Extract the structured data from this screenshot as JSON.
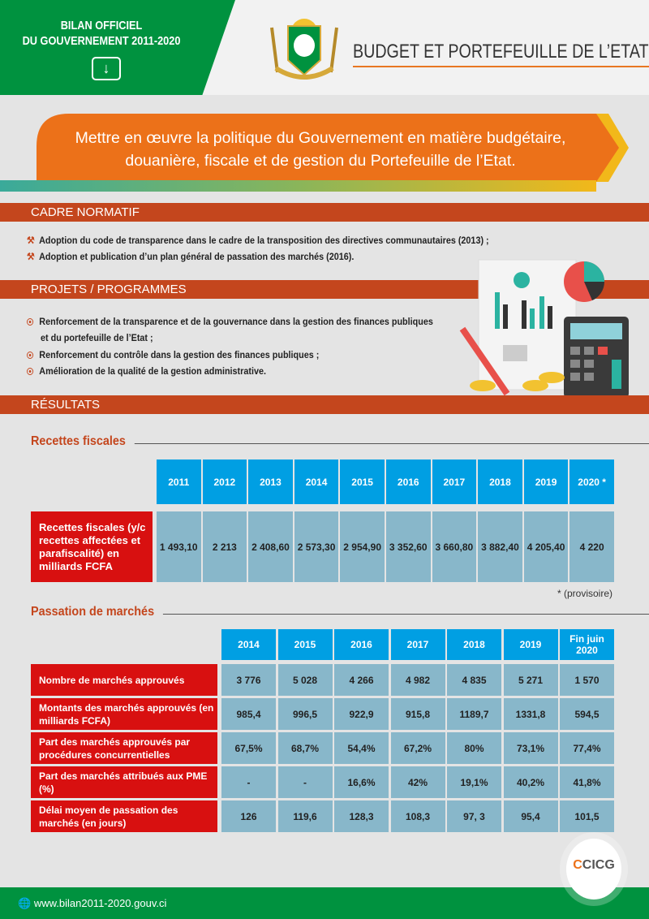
{
  "header": {
    "badge_line1": "BILAN OFFICIEL",
    "badge_line2": "DU GOUVERNEMENT 2011-2020",
    "download_icon": "download-icon",
    "title": "BUDGET ET PORTEFEUILLE DE L’ETAT"
  },
  "banner": {
    "text": "Mettre en œuvre la politique du Gouvernement en matière budgétaire, douanière, fiscale et de gestion du Portefeuille de l’Etat."
  },
  "cadre": {
    "title": "CADRE NORMATIF",
    "items": [
      "Adoption du code de transparence dans le cadre de la transposition des directives communautaires (2013) ;",
      "Adoption et publication d’un plan général de passation des marchés (2016)."
    ]
  },
  "projets": {
    "title": "PROJETS / PROGRAMMES",
    "items": [
      "Renforcement de la transparence et de la gouvernance dans la gestion des finances publiques",
      "et du portefeuille de l’Etat ;",
      "Renforcement du contrôle dans la gestion des finances publiques ;",
      "Amélioration de la qualité de la gestion administrative."
    ]
  },
  "resultats": {
    "title": "RÉSULTATS"
  },
  "recettes": {
    "title": "Recettes fiscales",
    "years": [
      "2011",
      "2012",
      "2013",
      "2014",
      "2015",
      "2016",
      "2017",
      "2018",
      "2019",
      "2020 *"
    ],
    "label": "Recettes fiscales (y/c recettes affectées et parafiscalité) en milliards FCFA",
    "values": [
      "1 493,10",
      "2 213",
      "2 408,60",
      "2 573,30",
      "2 954,90",
      "3 352,60",
      "3 660,80",
      "3 882,40",
      "4 205,40",
      "4 220"
    ],
    "note": "* (provisoire)"
  },
  "passation": {
    "title": "Passation de marchés",
    "years": [
      "2014",
      "2015",
      "2016",
      "2017",
      "2018",
      "2019",
      "Fin juin 2020"
    ],
    "rows": [
      {
        "label": "Nombre de marchés approuvés",
        "values": [
          "3 776",
          "5 028",
          "4 266",
          "4 982",
          "4 835",
          "5 271",
          "1 570"
        ]
      },
      {
        "label": "Montants des marchés approuvés (en milliards FCFA)",
        "values": [
          "985,4",
          "996,5",
          "922,9",
          "915,8",
          "1189,7",
          "1331,8",
          "594,5"
        ]
      },
      {
        "label": "Part des marchés approuvés par procédures concurrentielles",
        "values": [
          "67,5%",
          "68,7%",
          "54,4%",
          "67,2%",
          "80%",
          "73,1%",
          "77,4%"
        ]
      },
      {
        "label": "Part des marchés attribués aux PME (%)",
        "values": [
          "-",
          "-",
          "16,6%",
          "42%",
          "19,1%",
          "40,2%",
          "41,8%"
        ]
      },
      {
        "label": "Délai moyen de passation des marchés (en jours)",
        "values": [
          "126",
          "119,6",
          "128,3",
          "108,3",
          "97, 3",
          "95,4",
          "101,5"
        ]
      }
    ]
  },
  "footer": {
    "url": "www.bilan2011-2020.gouv.ci",
    "logo": "CICG"
  },
  "colors": {
    "green": "#00923f",
    "orange": "#ec7119",
    "section": "#c4461d",
    "header_cell": "#009fe3",
    "data_cell": "#88b7ca",
    "label_cell": "#d81010"
  }
}
